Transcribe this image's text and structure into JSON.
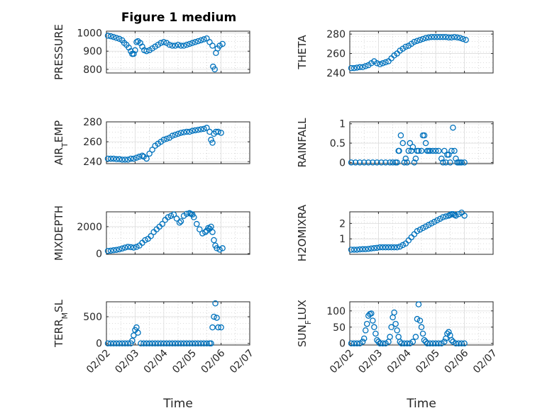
{
  "page": {
    "title": "Figure 1 medium",
    "xlabel": "Time",
    "marker_color": "#0072BD"
  },
  "chart_data": [
    {
      "type": "scatter",
      "ylabel": "PRESSURE",
      "ylim": [
        780,
        1010
      ],
      "yticks": [
        800,
        900,
        1000
      ],
      "xlim": [
        0,
        5
      ],
      "xtick_labels": [
        "02/02",
        "02/03",
        "02/04",
        "02/05",
        "02/06",
        "02/07"
      ],
      "show_xtick_labels": false,
      "x": [
        0.05,
        0.15,
        0.25,
        0.35,
        0.45,
        0.55,
        0.62,
        0.7,
        0.78,
        0.85,
        0.9,
        0.95,
        1.0,
        1.05,
        1.1,
        1.18,
        1.25,
        1.32,
        1.4,
        1.5,
        1.6,
        1.7,
        1.8,
        1.9,
        2.0,
        2.1,
        2.2,
        2.3,
        2.4,
        2.5,
        2.6,
        2.7,
        2.8,
        2.9,
        3.0,
        3.1,
        3.2,
        3.3,
        3.4,
        3.5,
        3.6,
        3.7,
        3.72,
        3.78,
        3.82,
        3.88,
        3.95,
        4.05
      ],
      "y": [
        985,
        982,
        978,
        973,
        968,
        960,
        945,
        935,
        920,
        900,
        885,
        885,
        905,
        950,
        955,
        945,
        925,
        905,
        900,
        905,
        915,
        925,
        935,
        945,
        950,
        945,
        935,
        930,
        930,
        935,
        930,
        930,
        935,
        940,
        945,
        950,
        955,
        960,
        965,
        970,
        950,
        930,
        815,
        800,
        890,
        915,
        930,
        940
      ]
    },
    {
      "type": "scatter",
      "ylabel": "THETA",
      "ylim": [
        240,
        283
      ],
      "yticks": [
        240,
        260,
        280
      ],
      "xlim": [
        0,
        5
      ],
      "xtick_labels": [
        "02/02",
        "02/03",
        "02/04",
        "02/05",
        "02/06",
        "02/07"
      ],
      "show_xtick_labels": false,
      "x": [
        0.05,
        0.15,
        0.25,
        0.35,
        0.45,
        0.55,
        0.65,
        0.75,
        0.85,
        0.95,
        1.05,
        1.15,
        1.25,
        1.35,
        1.45,
        1.55,
        1.65,
        1.75,
        1.85,
        1.95,
        2.05,
        2.15,
        2.25,
        2.35,
        2.45,
        2.55,
        2.65,
        2.75,
        2.85,
        2.95,
        3.05,
        3.15,
        3.25,
        3.35,
        3.45,
        3.55,
        3.65,
        3.75,
        3.85,
        3.95,
        4.05
      ],
      "y": [
        245,
        245,
        245.5,
        246,
        246,
        247,
        248,
        250,
        252,
        250,
        249,
        250,
        251,
        252,
        255,
        258,
        260,
        263,
        265,
        267,
        268,
        270,
        272,
        273,
        274,
        275,
        276,
        276.5,
        277,
        277,
        277,
        277,
        277,
        277,
        276.5,
        276.5,
        277,
        276.5,
        276,
        275,
        274
      ]
    },
    {
      "type": "scatter",
      "ylabel": "AIR_TEMP",
      "ylim": [
        238,
        280
      ],
      "yticks": [
        240,
        260,
        280
      ],
      "xlim": [
        0,
        5
      ],
      "xtick_labels": [
        "02/02",
        "02/03",
        "02/04",
        "02/05",
        "02/06",
        "02/07"
      ],
      "show_xtick_labels": false,
      "x": [
        0.05,
        0.15,
        0.25,
        0.35,
        0.45,
        0.55,
        0.65,
        0.75,
        0.85,
        0.95,
        1.05,
        1.15,
        1.25,
        1.3,
        1.4,
        1.5,
        1.6,
        1.7,
        1.8,
        1.9,
        2.0,
        2.1,
        2.2,
        2.3,
        2.4,
        2.5,
        2.6,
        2.7,
        2.8,
        2.9,
        3.0,
        3.1,
        3.2,
        3.3,
        3.4,
        3.5,
        3.6,
        3.65,
        3.7,
        3.75,
        3.82,
        3.9,
        4.0
      ],
      "y": [
        243,
        243,
        243,
        242.5,
        242.5,
        242,
        242,
        242,
        243,
        243,
        244,
        245,
        246,
        245,
        243,
        248,
        252,
        256,
        258,
        260,
        262,
        263,
        264,
        266,
        267,
        268,
        269,
        269.5,
        270,
        270,
        271,
        271.5,
        272,
        272.5,
        273,
        274,
        270,
        262,
        259,
        268,
        270,
        270,
        269
      ]
    },
    {
      "type": "scatter",
      "ylabel": "RAINFALL",
      "ylim": [
        -0.03,
        1.05
      ],
      "yticks": [
        0,
        0.5,
        1
      ],
      "xlim": [
        0,
        5
      ],
      "xtick_labels": [
        "02/02",
        "02/03",
        "02/04",
        "02/05",
        "02/06",
        "02/07"
      ],
      "show_xtick_labels": false,
      "x": [
        0.05,
        0.2,
        0.35,
        0.5,
        0.65,
        0.8,
        0.95,
        1.1,
        1.25,
        1.4,
        1.5,
        1.6,
        1.65,
        1.7,
        1.72,
        1.78,
        1.85,
        1.9,
        1.95,
        2.0,
        2.05,
        2.1,
        2.15,
        2.2,
        2.25,
        2.3,
        2.35,
        2.4,
        2.5,
        2.55,
        2.6,
        2.65,
        2.7,
        2.75,
        2.8,
        2.9,
        3.0,
        3.1,
        3.2,
        3.25,
        3.3,
        3.35,
        3.4,
        3.45,
        3.5,
        3.55,
        3.6,
        3.65,
        3.7,
        3.75,
        3.8,
        3.85,
        3.9,
        4.0
      ],
      "y": [
        0,
        0,
        0,
        0,
        0,
        0,
        0,
        0,
        0,
        0,
        0,
        0,
        0,
        0.3,
        0.3,
        0.7,
        0.5,
        0,
        0.1,
        0,
        0.3,
        0.5,
        0.3,
        0.4,
        0,
        0.1,
        0.3,
        0.3,
        0.3,
        0.7,
        0.7,
        0.5,
        0.3,
        0.3,
        0.3,
        0.3,
        0.3,
        0.3,
        0.1,
        0,
        0.3,
        0,
        0.2,
        0.2,
        0,
        0.3,
        0.9,
        0.3,
        0.1,
        0,
        0,
        0,
        0,
        0
      ]
    },
    {
      "type": "scatter",
      "ylabel": "MIXDEPTH",
      "ylim": [
        -50,
        3100
      ],
      "yticks": [
        0,
        2000
      ],
      "xlim": [
        0,
        5
      ],
      "xtick_labels": [
        "02/02",
        "02/03",
        "02/04",
        "02/05",
        "02/06",
        "02/07"
      ],
      "show_xtick_labels": false,
      "x": [
        0.05,
        0.15,
        0.25,
        0.35,
        0.45,
        0.55,
        0.65,
        0.75,
        0.85,
        0.95,
        1.05,
        1.15,
        1.25,
        1.35,
        1.45,
        1.55,
        1.65,
        1.75,
        1.85,
        1.95,
        2.05,
        2.15,
        2.25,
        2.35,
        2.45,
        2.55,
        2.6,
        2.7,
        2.8,
        2.9,
        2.95,
        3.0,
        3.05,
        3.15,
        3.25,
        3.35,
        3.45,
        3.5,
        3.55,
        3.6,
        3.65,
        3.7,
        3.75,
        3.8,
        3.85,
        3.95,
        4.05
      ],
      "y": [
        200,
        220,
        250,
        280,
        320,
        380,
        450,
        500,
        480,
        450,
        500,
        600,
        800,
        1000,
        1100,
        1300,
        1600,
        1800,
        2000,
        2200,
        2500,
        2700,
        2800,
        2900,
        2600,
        2300,
        2400,
        2800,
        2950,
        3000,
        2950,
        2900,
        2700,
        2200,
        1800,
        1500,
        1600,
        1700,
        1900,
        1850,
        2000,
        1600,
        1000,
        600,
        400,
        300,
        400
      ]
    },
    {
      "type": "scatter",
      "ylabel": "H2OMIXRA",
      "ylim": [
        0,
        2.75
      ],
      "yticks": [
        1,
        2
      ],
      "xlim": [
        0,
        5
      ],
      "xtick_labels": [
        "02/02",
        "02/03",
        "02/04",
        "02/05",
        "02/06",
        "02/07"
      ],
      "show_xtick_labels": false,
      "x": [
        0.05,
        0.15,
        0.25,
        0.35,
        0.45,
        0.55,
        0.65,
        0.75,
        0.85,
        0.95,
        1.05,
        1.15,
        1.25,
        1.35,
        1.45,
        1.55,
        1.65,
        1.75,
        1.85,
        1.95,
        2.05,
        2.15,
        2.25,
        2.35,
        2.45,
        2.55,
        2.65,
        2.75,
        2.85,
        2.95,
        3.05,
        3.15,
        3.25,
        3.35,
        3.45,
        3.5,
        3.55,
        3.6,
        3.65,
        3.7,
        3.8,
        3.9,
        4.0
      ],
      "y": [
        0.3,
        0.3,
        0.3,
        0.32,
        0.33,
        0.33,
        0.35,
        0.38,
        0.4,
        0.42,
        0.45,
        0.45,
        0.45,
        0.45,
        0.45,
        0.45,
        0.45,
        0.5,
        0.6,
        0.7,
        0.9,
        1.1,
        1.3,
        1.5,
        1.6,
        1.7,
        1.8,
        1.9,
        2.0,
        2.1,
        2.2,
        2.3,
        2.4,
        2.45,
        2.5,
        2.55,
        2.6,
        2.6,
        2.55,
        2.5,
        2.6,
        2.7,
        2.5
      ]
    },
    {
      "type": "scatter",
      "ylabel": "TERR_MSL",
      "ylim": [
        -30,
        780
      ],
      "yticks": [
        0,
        500
      ],
      "xlim": [
        0,
        5
      ],
      "xtick_labels": [
        "02/02",
        "02/03",
        "02/04",
        "02/05",
        "02/06",
        "02/07"
      ],
      "show_xtick_labels": true,
      "x": [
        0.05,
        0.15,
        0.25,
        0.35,
        0.45,
        0.55,
        0.65,
        0.75,
        0.85,
        0.9,
        0.95,
        1.0,
        1.05,
        1.1,
        1.2,
        1.3,
        1.4,
        1.5,
        1.6,
        1.7,
        1.8,
        1.9,
        2.0,
        2.1,
        2.2,
        2.3,
        2.4,
        2.5,
        2.6,
        2.7,
        2.8,
        2.9,
        3.0,
        3.1,
        3.2,
        3.3,
        3.4,
        3.5,
        3.6,
        3.65,
        3.7,
        3.75,
        3.8,
        3.85,
        3.9,
        4.0
      ],
      "y": [
        0,
        0,
        0,
        0,
        0,
        0,
        0,
        0,
        0,
        50,
        150,
        250,
        300,
        200,
        0,
        0,
        0,
        0,
        0,
        0,
        0,
        0,
        0,
        0,
        0,
        0,
        0,
        0,
        0,
        0,
        0,
        0,
        0,
        0,
        0,
        0,
        0,
        0,
        0,
        0,
        300,
        500,
        750,
        480,
        300,
        300
      ]
    },
    {
      "type": "scatter",
      "ylabel": "SUN_FLUX",
      "ylim": [
        -5,
        128
      ],
      "yticks": [
        0,
        50,
        100
      ],
      "xlim": [
        0,
        5
      ],
      "xtick_labels": [
        "02/02",
        "02/03",
        "02/04",
        "02/05",
        "02/06",
        "02/07"
      ],
      "show_xtick_labels": true,
      "x": [
        0.05,
        0.15,
        0.25,
        0.35,
        0.45,
        0.5,
        0.55,
        0.6,
        0.65,
        0.7,
        0.75,
        0.8,
        0.85,
        0.9,
        0.95,
        1.0,
        1.05,
        1.15,
        1.25,
        1.35,
        1.4,
        1.45,
        1.5,
        1.55,
        1.6,
        1.65,
        1.7,
        1.75,
        1.8,
        1.9,
        2.0,
        2.1,
        2.2,
        2.3,
        2.35,
        2.4,
        2.45,
        2.5,
        2.55,
        2.6,
        2.65,
        2.7,
        2.8,
        2.9,
        3.0,
        3.1,
        3.2,
        3.3,
        3.35,
        3.4,
        3.45,
        3.5,
        3.55,
        3.6,
        3.7,
        3.8,
        3.9,
        4.0
      ],
      "y": [
        0,
        0,
        0,
        0,
        5,
        15,
        40,
        60,
        85,
        90,
        92,
        70,
        50,
        30,
        10,
        5,
        0,
        0,
        0,
        5,
        20,
        50,
        80,
        95,
        60,
        40,
        20,
        5,
        0,
        0,
        0,
        0,
        5,
        20,
        75,
        120,
        70,
        50,
        30,
        10,
        5,
        0,
        0,
        0,
        0,
        0,
        0,
        5,
        15,
        30,
        35,
        25,
        10,
        5,
        0,
        0,
        0,
        0
      ]
    }
  ]
}
